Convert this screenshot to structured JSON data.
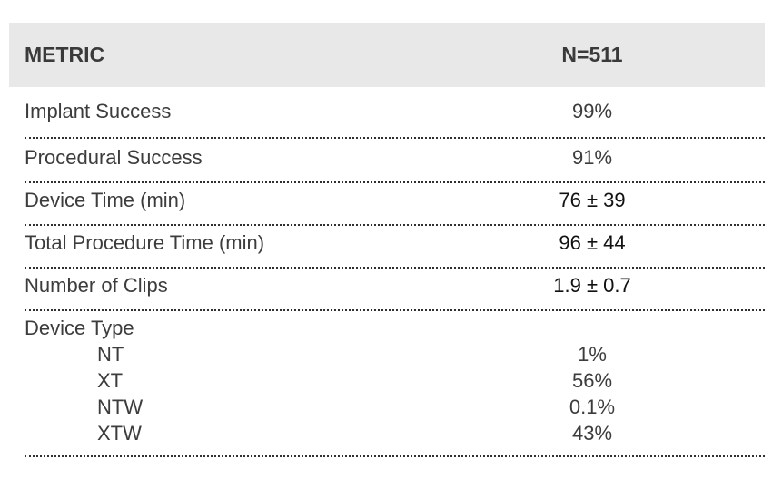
{
  "table": {
    "header": {
      "metric": "METRIC",
      "value": "N=511"
    },
    "rows": [
      {
        "label": "Implant Success",
        "value": "99%"
      },
      {
        "label": "Procedural Success",
        "value": "91%"
      },
      {
        "label": "Device Time (min)",
        "value": "76 ± 39"
      },
      {
        "label": "Total Procedure Time (min)",
        "value": "96 ± 44"
      },
      {
        "label": "Number of Clips",
        "value": "1.9 ± 0.7"
      }
    ],
    "device_type": {
      "label": "Device Type",
      "items": [
        {
          "label": "NT",
          "value": "1%"
        },
        {
          "label": "XT",
          "value": "56%"
        },
        {
          "label": "NTW",
          "value": "0.1%"
        },
        {
          "label": "XTW",
          "value": "43%"
        }
      ]
    }
  }
}
